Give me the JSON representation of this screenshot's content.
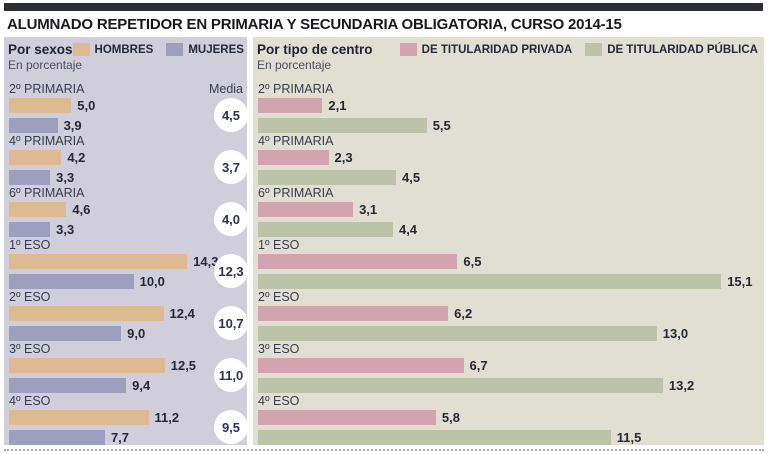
{
  "title": "ALUMNADO REPETIDOR EN PRIMARIA Y SECUNDARIA OBLIGATORIA, CURSO 2014-15",
  "decimal_separator": ",",
  "chart_data": [
    {
      "type": "bar",
      "orientation": "horizontal",
      "panel_title": "Por sexos",
      "unit_note": "En porcentaje",
      "background": "#d0cedb",
      "grid": false,
      "legend_position": "top",
      "xmax": 18.7,
      "categories": [
        "2º PRIMARIA",
        "4º PRIMARIA",
        "6º PRIMARIA",
        "1º ESO",
        "2º ESO",
        "3º ESO",
        "4º ESO"
      ],
      "series": [
        {
          "name": "HOMBRES",
          "color": "#ddba92",
          "values": [
            5.0,
            4.2,
            4.6,
            14.3,
            12.4,
            12.5,
            11.2
          ]
        },
        {
          "name": "MUJERES",
          "color": "#9e9fbe",
          "values": [
            3.9,
            3.3,
            3.3,
            10.0,
            9.0,
            9.4,
            7.7
          ]
        }
      ],
      "media_label": "Media",
      "media_values": [
        4.5,
        3.7,
        4.0,
        12.3,
        10.7,
        11.0,
        9.5
      ]
    },
    {
      "type": "bar",
      "orientation": "horizontal",
      "panel_title": "Por tipo de centro",
      "unit_note": "En porcentaje",
      "background": "#e0dfd2",
      "grid": false,
      "legend_position": "top",
      "xmax": 16.3,
      "categories": [
        "2º PRIMARIA",
        "4º PRIMARIA",
        "6º PRIMARIA",
        "1º ESO",
        "2º ESO",
        "3º ESO",
        "4º ESO"
      ],
      "series": [
        {
          "name": "DE TITULARIDAD PRIVADA",
          "color": "#d3a4b0",
          "values": [
            2.1,
            2.3,
            3.1,
            6.5,
            6.2,
            6.7,
            5.8
          ]
        },
        {
          "name": "DE TITULARIDAD PÚBLICA",
          "color": "#bdc3a9",
          "values": [
            5.5,
            4.5,
            4.4,
            15.1,
            13.0,
            13.2,
            11.5
          ]
        }
      ]
    }
  ]
}
